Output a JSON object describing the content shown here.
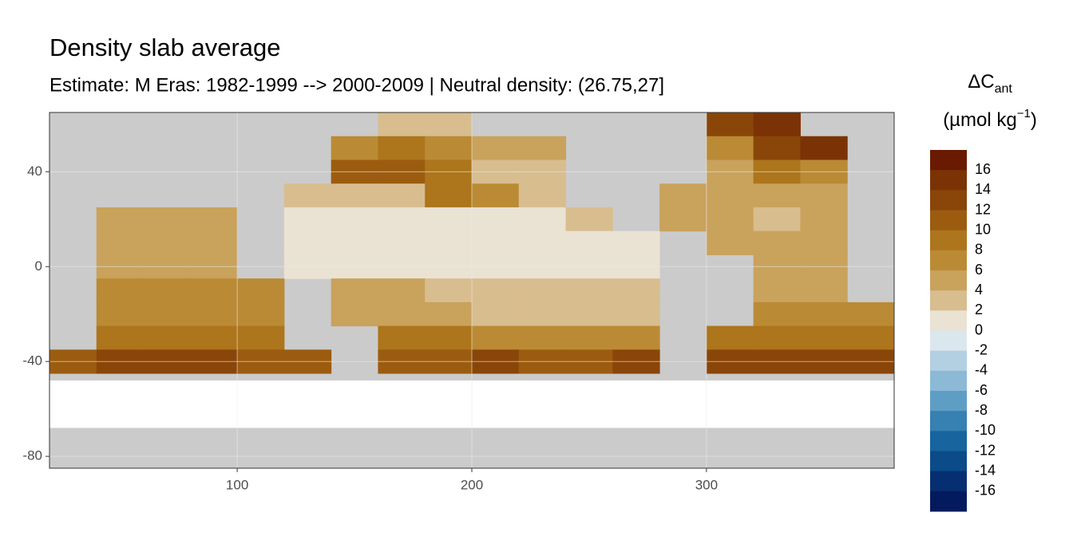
{
  "chart_data": {
    "type": "raster",
    "title": "Density slab average",
    "subtitle": "Estimate: M Eras: 1982-1999 --> 2000-2009 | Neutral density: (26.75,27]",
    "legend_title": {
      "symbol": "ΔC",
      "subscript": "ant",
      "unit": "(µmol kg",
      "unit_superscript": "−1",
      "unit_close": ")"
    },
    "xlim": [
      20,
      380
    ],
    "ylim": [
      -85,
      65
    ],
    "xticks": [
      100,
      200,
      300
    ],
    "yticks": [
      40,
      0,
      -40,
      -80
    ],
    "grid": true,
    "lon": [
      30,
      50,
      70,
      90,
      110,
      130,
      150,
      170,
      190,
      210,
      230,
      250,
      270,
      290,
      310,
      330,
      350,
      370
    ],
    "lat": [
      60,
      50,
      40,
      30,
      20,
      10,
      0,
      -10,
      -20,
      -30,
      -40
    ],
    "values": [
      [
        null,
        null,
        null,
        null,
        null,
        null,
        null,
        3,
        3,
        null,
        null,
        null,
        null,
        null,
        12,
        14,
        null,
        null
      ],
      [
        null,
        null,
        null,
        null,
        null,
        null,
        6,
        8,
        6,
        4,
        4,
        null,
        null,
        null,
        6,
        12,
        14,
        null
      ],
      [
        null,
        null,
        null,
        null,
        null,
        null,
        10,
        10,
        8,
        3,
        3,
        null,
        null,
        null,
        4,
        8,
        6,
        null
      ],
      [
        null,
        null,
        null,
        null,
        null,
        3,
        3,
        3,
        8,
        6,
        3,
        null,
        null,
        4,
        4,
        4,
        4,
        null
      ],
      [
        null,
        4,
        4,
        4,
        null,
        1,
        1,
        1,
        1,
        1,
        1,
        3,
        null,
        4,
        4,
        3,
        4,
        null
      ],
      [
        null,
        4,
        4,
        4,
        null,
        1,
        1,
        1,
        1,
        1,
        1,
        1,
        1,
        null,
        4,
        4,
        4,
        null
      ],
      [
        null,
        5,
        5,
        4,
        null,
        1,
        1,
        1,
        1,
        1,
        1,
        1,
        1,
        null,
        null,
        4,
        4,
        null
      ],
      [
        null,
        6,
        6,
        6,
        6,
        null,
        4,
        4,
        3,
        3,
        3,
        3,
        3,
        null,
        null,
        4,
        4,
        null
      ],
      [
        null,
        6,
        6,
        6,
        6,
        null,
        4,
        4,
        4,
        3,
        3,
        3,
        3,
        null,
        null,
        6,
        6,
        6
      ],
      [
        null,
        8,
        8,
        8,
        8,
        null,
        null,
        8,
        8,
        6,
        6,
        6,
        6,
        null,
        8,
        8,
        8,
        8
      ],
      [
        10,
        12,
        12,
        12,
        10,
        10,
        null,
        10,
        10,
        12,
        10,
        10,
        12,
        null,
        12,
        12,
        12,
        12
      ]
    ],
    "legend_breaks": [
      16,
      14,
      12,
      10,
      8,
      6,
      4,
      2,
      0,
      -2,
      -4,
      -6,
      -8,
      -10,
      -12,
      -14,
      -16
    ],
    "legend_colors": [
      "#6a1a00",
      "#7b3305",
      "#8a4608",
      "#9c5c0f",
      "#ad751c",
      "#bb8a35",
      "#c9a25c",
      "#d8bd8f",
      "#eae2d3",
      "#dbe7ef",
      "#b3d0e3",
      "#8cb9d6",
      "#5e9ec5",
      "#3680b2",
      "#17649f",
      "#0b4b8a",
      "#062f72",
      "#031a5e"
    ]
  }
}
